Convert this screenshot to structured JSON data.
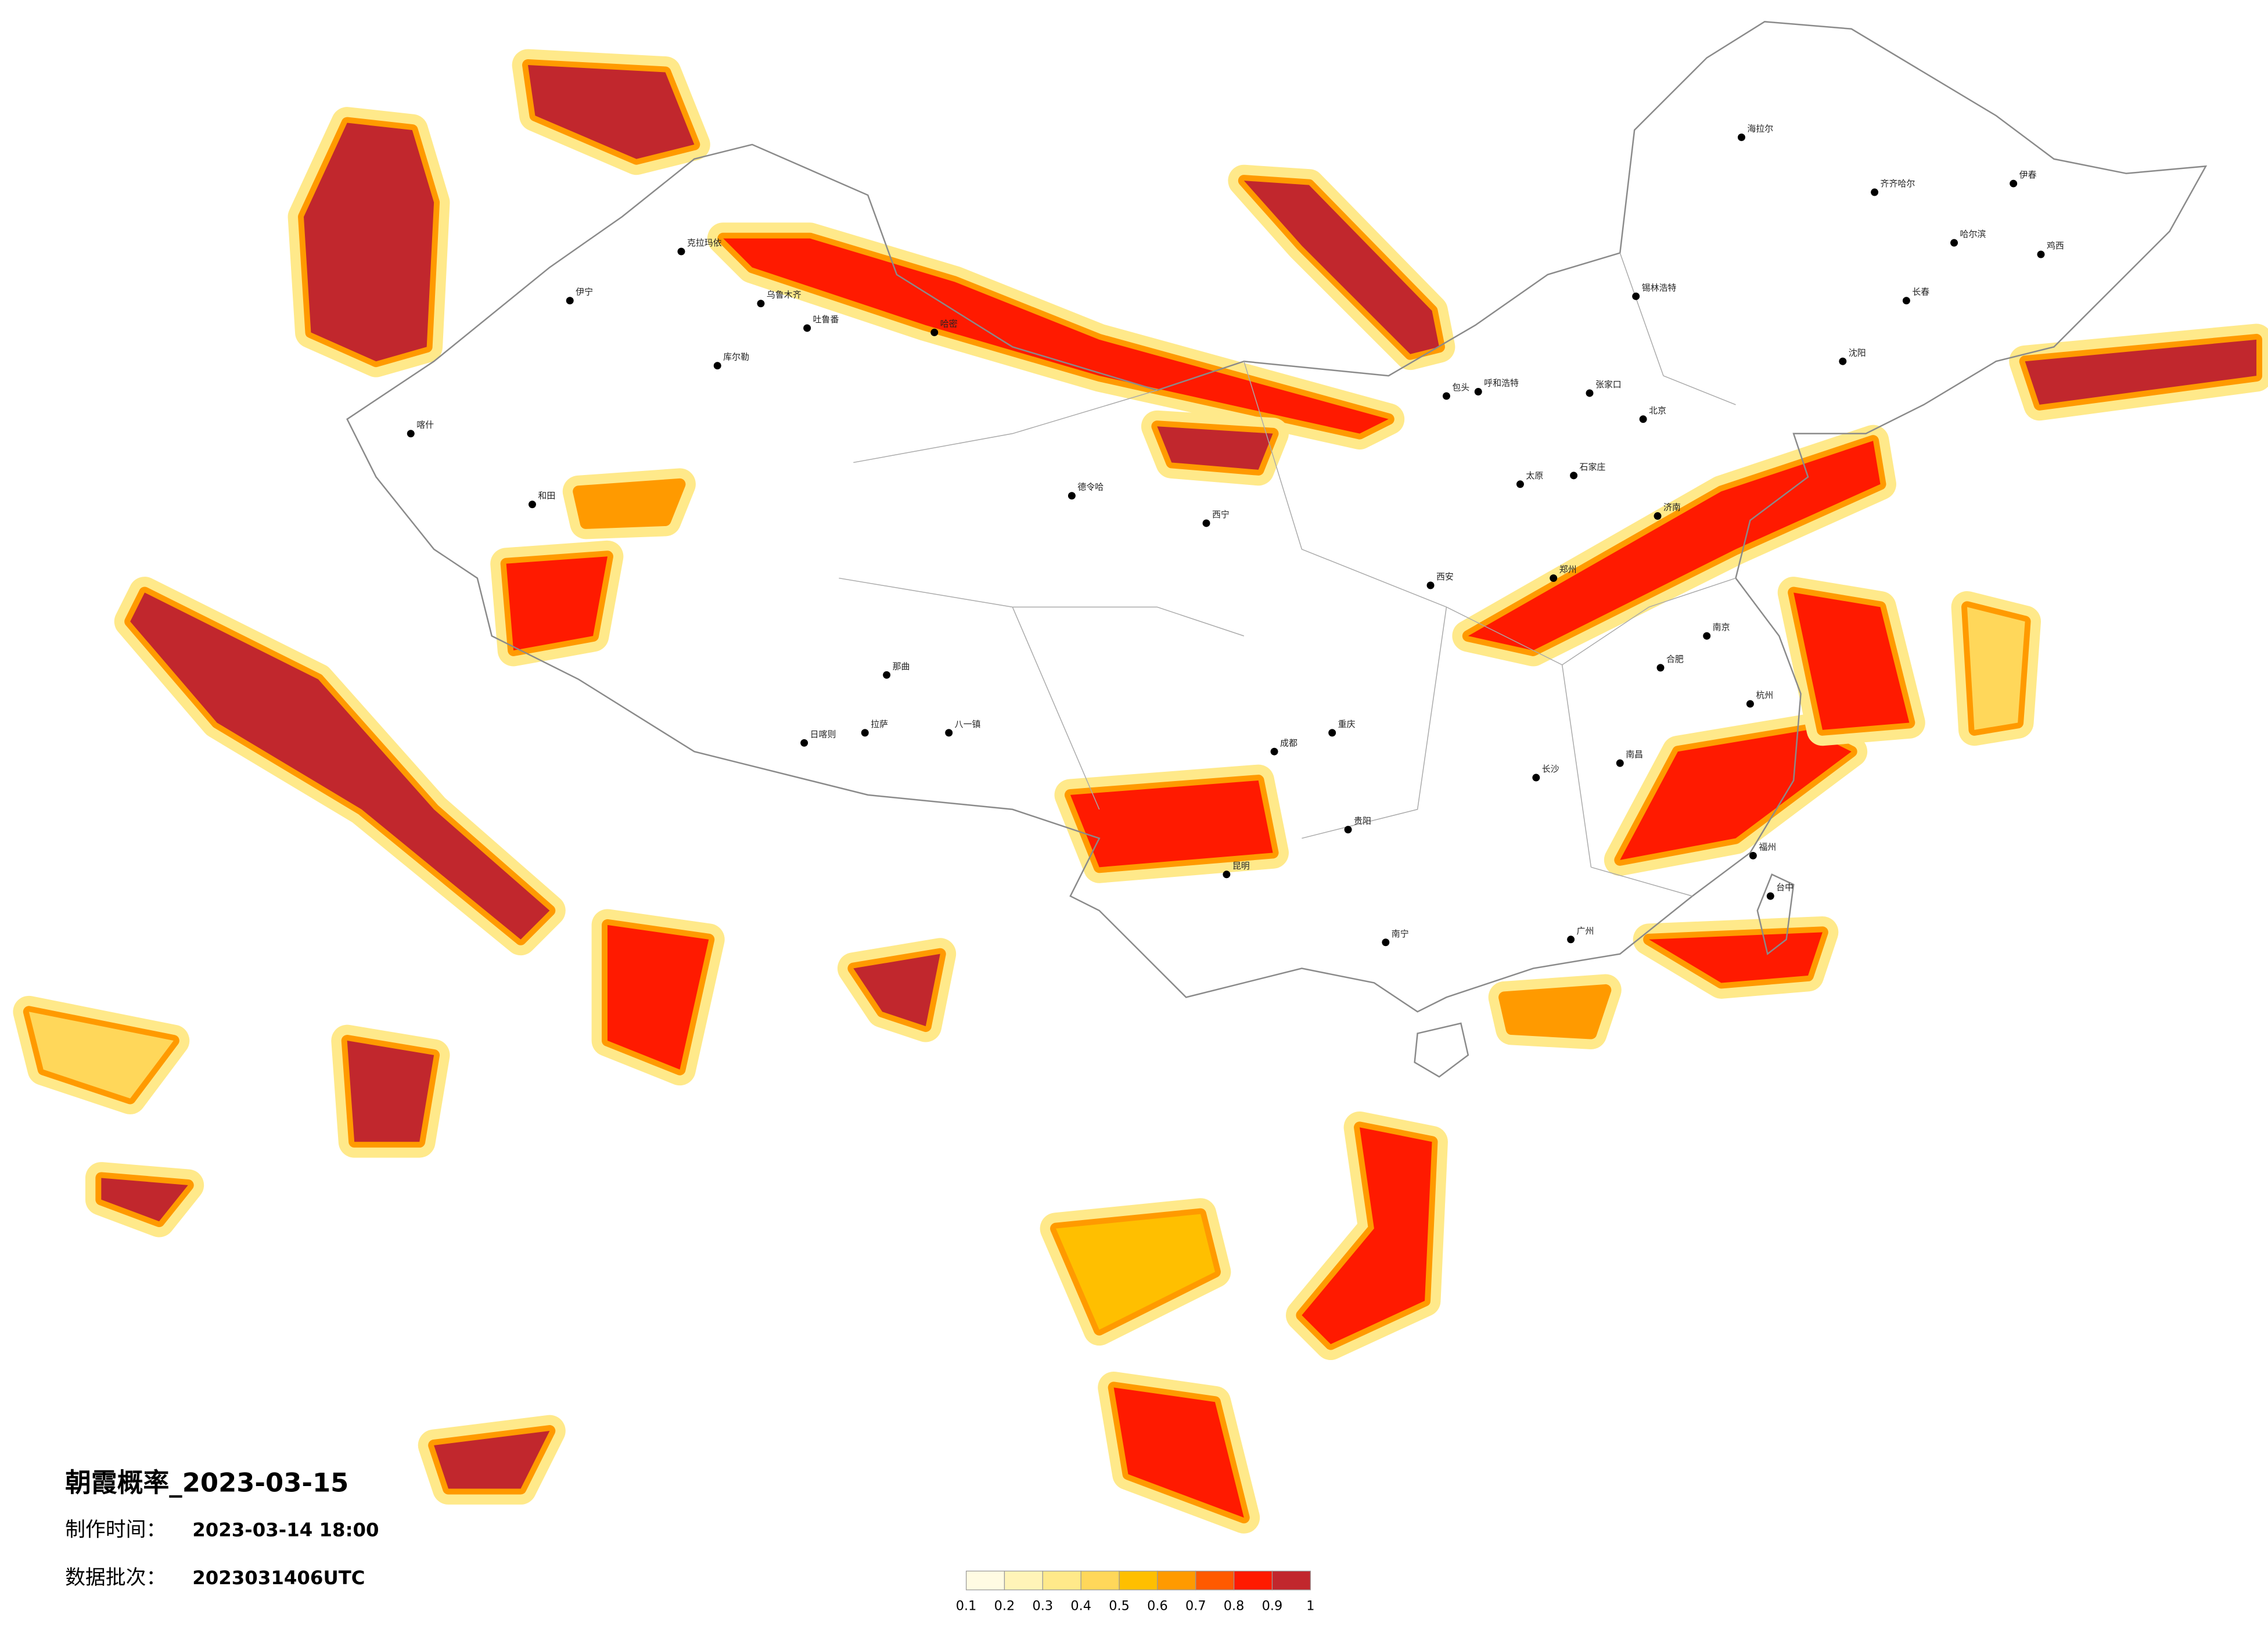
{
  "header": {
    "title": "朝霞概率_2023-03-15",
    "made_label": "制作时间：",
    "made_time": "2023-03-14 18:00",
    "batch_label": "数据批次：",
    "batch": "2023031406UTC"
  },
  "legend": {
    "ticks": [
      0.1,
      0.2,
      0.3,
      0.4,
      0.5,
      0.6,
      0.7,
      0.8,
      0.9,
      1
    ],
    "colors": [
      "#fffbe3",
      "#fff4b8",
      "#ffe98a",
      "#ffd75a",
      "#ffbf00",
      "#ff9a00",
      "#ff5a00",
      "#ff1a00",
      "#c1272d"
    ]
  },
  "cities": [
    "克拉玛依",
    "乌鲁木齐",
    "吐鲁番",
    "哈密",
    "库尔勒",
    "喀什",
    "和田",
    "伊宁",
    "德令哈",
    "拉萨",
    "日喀则",
    "那曲",
    "八一镇",
    "西宁",
    "呼和浩特",
    "包头",
    "张家口",
    "北京",
    "石家庄",
    "太原",
    "济南",
    "郑州",
    "西安",
    "成都",
    "重庆",
    "贵阳",
    "昆明",
    "南宁",
    "长沙",
    "南昌",
    "合肥",
    "南京",
    "杭州",
    "福州",
    "台中",
    "广州",
    "海拉尔",
    "齐齐哈尔",
    "哈尔滨",
    "长春",
    "沈阳",
    "锡林浩特",
    "鸡西",
    "伊春"
  ]
}
